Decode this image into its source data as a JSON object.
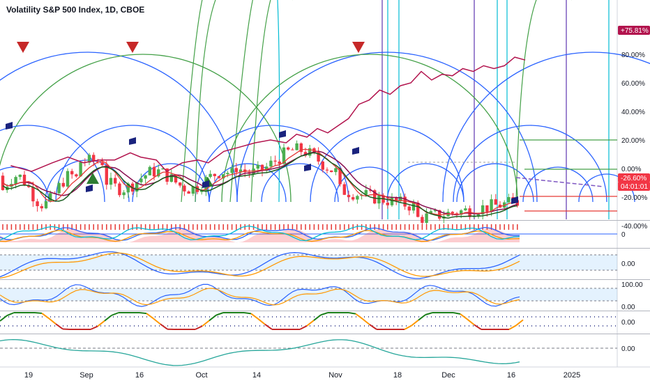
{
  "title": "Volatility S&P 500 Index, 1D, CBOE",
  "colors": {
    "up": "#4caf50",
    "down": "#f23645",
    "blue_arc": "#2962ff",
    "green_arc": "#43a047",
    "crimson": "#b2134d",
    "sma_red": "#e53935",
    "sma_dark": "#880e4f",
    "sma_green": "#1b5e20",
    "purple": "#5e35b1",
    "cyan": "#00bcd4",
    "orange": "#ff9800"
  },
  "chart_data": [
    {
      "type": "candlestick",
      "panel": "main",
      "x_ticks": [
        "19",
        "Sep",
        "16",
        "Oct",
        "14",
        "Nov",
        "18",
        "Dec",
        "16",
        "2025"
      ],
      "y_ticks": [
        "80.00%",
        "60.00%",
        "40.00%",
        "20.00%",
        "0.00%",
        "-20.00%",
        "-40.00%"
      ],
      "price_labels": [
        {
          "text": "+75.81%",
          "color": "#b2134d"
        },
        {
          "text": "-26.60%",
          "color": "#f23645"
        },
        {
          "text": "04:01:01",
          "color": "#f23645"
        }
      ],
      "pct_change_series": [
        {
          "x": 1,
          "y": 2
        },
        {
          "x": 5,
          "y": -2
        },
        {
          "x": 9,
          "y": 4
        },
        {
          "x": 12,
          "y": 8
        },
        {
          "x": 15,
          "y": 4
        },
        {
          "x": 18,
          "y": 6
        },
        {
          "x": 21,
          "y": 6
        },
        {
          "x": 24,
          "y": 11
        },
        {
          "x": 26,
          "y": 8
        },
        {
          "x": 29,
          "y": 6
        },
        {
          "x": 31,
          "y": -2
        },
        {
          "x": 34,
          "y": 4
        },
        {
          "x": 37,
          "y": 6
        },
        {
          "x": 39,
          "y": 4
        },
        {
          "x": 42,
          "y": 12
        },
        {
          "x": 45,
          "y": 15
        },
        {
          "x": 48,
          "y": 18
        },
        {
          "x": 51,
          "y": 20
        },
        {
          "x": 54,
          "y": 18
        },
        {
          "x": 56,
          "y": 24
        },
        {
          "x": 58,
          "y": 22
        },
        {
          "x": 60,
          "y": 28
        },
        {
          "x": 62,
          "y": 25
        },
        {
          "x": 64,
          "y": 30
        },
        {
          "x": 66,
          "y": 35
        },
        {
          "x": 68,
          "y": 45
        },
        {
          "x": 70,
          "y": 48
        },
        {
          "x": 72,
          "y": 55
        },
        {
          "x": 74,
          "y": 52
        },
        {
          "x": 76,
          "y": 58
        },
        {
          "x": 78,
          "y": 60
        },
        {
          "x": 80,
          "y": 68
        },
        {
          "x": 82,
          "y": 62
        },
        {
          "x": 84,
          "y": 66
        },
        {
          "x": 86,
          "y": 65
        },
        {
          "x": 88,
          "y": 70
        },
        {
          "x": 90,
          "y": 68
        },
        {
          "x": 92,
          "y": 72
        },
        {
          "x": 94,
          "y": 70
        },
        {
          "x": 96,
          "y": 72
        },
        {
          "x": 98,
          "y": 78
        },
        {
          "x": 100,
          "y": 76
        }
      ]
    },
    {
      "type": "line",
      "panel": "oscillator-1",
      "y_ticks": [
        "0"
      ]
    },
    {
      "type": "line",
      "panel": "oscillator-2",
      "y_ticks": [
        "0.00"
      ]
    },
    {
      "type": "line",
      "panel": "oscillator-3",
      "y_ticks": [
        "100.00",
        "0.00"
      ]
    },
    {
      "type": "line",
      "panel": "oscillator-4",
      "y_ticks": [
        "0.00"
      ]
    },
    {
      "type": "line",
      "panel": "oscillator-5",
      "y_ticks": [
        "0.00"
      ]
    }
  ]
}
